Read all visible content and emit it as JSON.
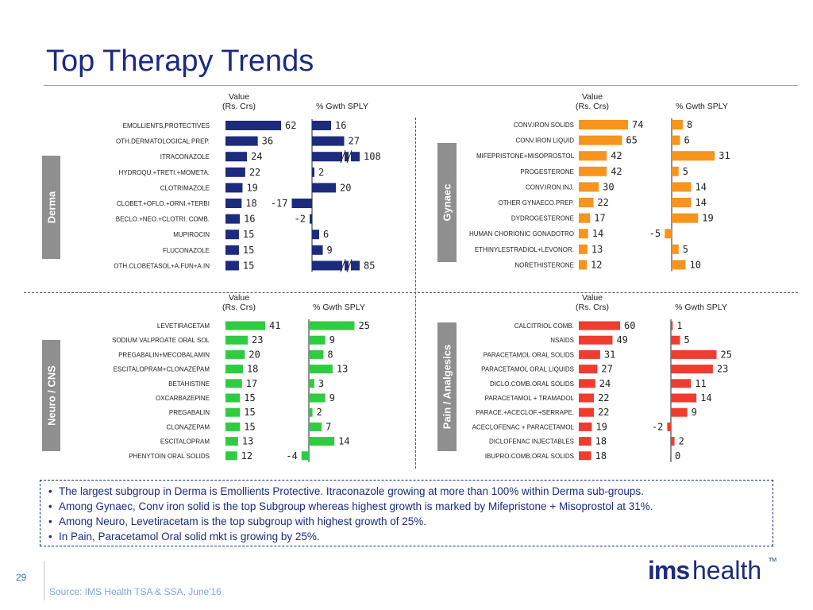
{
  "slide": {
    "title": "Top Therapy Trends",
    "page_number": "29",
    "source": "Source: IMS Health TSA & SSA, June'16",
    "logo_ims": "ims",
    "logo_health": "health",
    "logo_tm": "TM"
  },
  "notes": [
    "The largest subgroup in Derma is Emollients Protective. Itraconazole growing at more than 100% within Derma sub-groups.",
    "Among Gynaec, Conv iron solid is the top Subgroup whereas highest growth is marked by Mifepristone + Misoprostol at 31%.",
    "Among  Neuro, Levetiracetam is the top subgroup with highest growth of 25%.",
    "In Pain, Paracetamol Oral solid mkt is growing by 25%."
  ],
  "chart_data": [
    {
      "type": "bar",
      "panel_label": "Derma",
      "color": "#1c2b7e",
      "value_header": [
        "Value",
        "(Rs. Crs)"
      ],
      "growth_header": "% Gwth SPLY",
      "categories": [
        "EMOLLIENTS,PROTECTIVES",
        "OTH.DERMATOLOGICAL PREP.",
        "ITRACONAZOLE",
        "HYDROQU.+TRETI.+MOMETA.",
        "CLOTRIMAZOLE",
        "CLOBET.+OFLO.+ORNI.+TERBI",
        "BECLO.+NEO.+CLOTRI. COMB.",
        "MUPIROCIN",
        "FLUCONAZOLE",
        "OTH.CLOBETASOL+A.FUN+A.IN"
      ],
      "series": [
        {
          "values": [
            62,
            36,
            24,
            22,
            19,
            18,
            16,
            15,
            15,
            15
          ]
        },
        {
          "values": [
            16,
            27,
            108,
            2,
            20,
            -17,
            -2,
            6,
            9,
            85
          ]
        }
      ],
      "axis_break_on": [
        "ITRACONAZOLE",
        "OTH.CLOBETASOL+A.FUN+A.IN"
      ]
    },
    {
      "type": "bar",
      "panel_label": "Gynaec",
      "color": "#f7941d",
      "value_header": [
        "Value",
        "(Rs. Crs)"
      ],
      "growth_header": "% Gwth SPLY",
      "categories": [
        "CONV.IRON SOLIDS",
        "CONV.IRON LIQUID",
        "MIFEPRISTONE+MISOPROSTOL",
        "PROGESTERONE",
        "CONV.IRON INJ.",
        "OTHER GYNAECO.PREP.",
        "DYDROGESTERONE",
        "HUMAN CHORIONIC GONADOTRO",
        "ETHINYLESTRADIOL+LEVONOR.",
        "NORETHISTERONE"
      ],
      "series": [
        {
          "values": [
            74,
            65,
            42,
            42,
            30,
            22,
            17,
            14,
            13,
            12
          ]
        },
        {
          "values": [
            8,
            6,
            31,
            5,
            14,
            14,
            19,
            -5,
            5,
            10
          ]
        }
      ]
    },
    {
      "type": "bar",
      "panel_label": "Neuro / CNS",
      "color": "#2ecc40",
      "value_header": [
        "Value",
        "(Rs. Crs)"
      ],
      "growth_header": "% Gwth SPLY",
      "categories": [
        "LEVETIRACETAM",
        "SODIUM VALPROATE ORAL SOL",
        "PREGABALIN+MECOBALAMIN",
        "ESCITALOPRAM+CLONAZEPAM",
        "BETAHISTINE",
        "OXCARBAZEPINE",
        "PREGABALIN",
        "CLONAZEPAM",
        "ESCITALOPRAM",
        "PHENYTOIN ORAL SOLIDS"
      ],
      "series": [
        {
          "values": [
            41,
            23,
            20,
            18,
            17,
            15,
            15,
            15,
            13,
            12
          ]
        },
        {
          "values": [
            25,
            9,
            8,
            13,
            3,
            9,
            2,
            7,
            14,
            -4
          ]
        }
      ]
    },
    {
      "type": "bar",
      "panel_label": "Pain / Analgesics",
      "color": "#f03c2f",
      "value_header": [
        "Value",
        "(Rs. Crs)"
      ],
      "growth_header": "% Gwth SPLY",
      "categories": [
        "CALCITRIOL COMB.",
        "NSAIDS",
        "PARACETAMOL ORAL SOLIDS",
        "PARACETAMOL ORAL LIQUIDS",
        "DICLO.COMB.ORAL SOLIDS",
        "PARACETAMOL + TRAMADOL",
        "PARACE.+ACECLOF.+SERRAPE.",
        "ACECLOFENAC + PARACETAMOL",
        "DICLOFENAC INJECTABLES",
        "IBUPRO.COMB.ORAL SOLIDS"
      ],
      "series": [
        {
          "values": [
            60,
            49,
            31,
            27,
            24,
            22,
            22,
            19,
            18,
            18
          ]
        },
        {
          "values": [
            1,
            5,
            25,
            23,
            11,
            14,
            9,
            -2,
            2,
            0
          ]
        }
      ]
    }
  ]
}
